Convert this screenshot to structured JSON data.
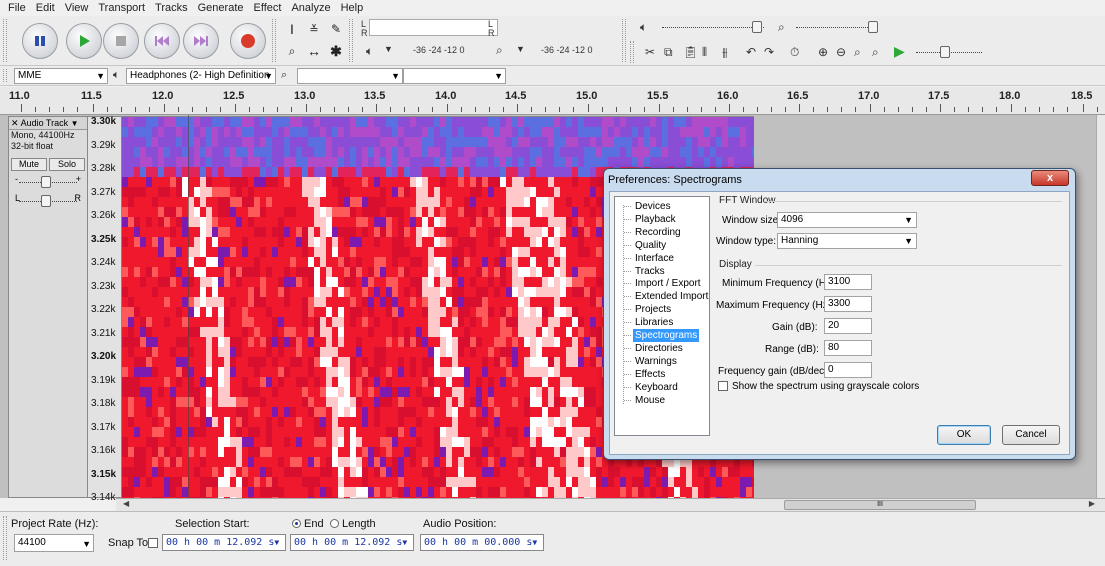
{
  "menu": [
    "File",
    "Edit",
    "View",
    "Transport",
    "Tracks",
    "Generate",
    "Effect",
    "Analyze",
    "Help"
  ],
  "meters": {
    "record_L": "L",
    "record_R": "R",
    "play_L": "L",
    "play_R": "R",
    "record_ticks": "-36  -24  -12   0",
    "play_ticks": "-36  -24  -12   0"
  },
  "device": {
    "host": "MME",
    "output": "Headphones (2- High Definition",
    "input": ""
  },
  "ruler": {
    "labels": [
      "11.0",
      "11.5",
      "12.0",
      "12.5",
      "13.0",
      "13.5",
      "14.0",
      "14.5",
      "15.0",
      "15.5",
      "16.0",
      "16.5",
      "17.0",
      "17.5",
      "18.0",
      "18.5"
    ]
  },
  "track": {
    "name": "Audio Track",
    "format": "Mono, 44100Hz",
    "bitdepth": "32-bit float",
    "mute": "Mute",
    "solo": "Solo",
    "gain_minus": "-",
    "gain_plus": "+",
    "pan_left": "L",
    "pan_right": "R"
  },
  "freq_labels": [
    "3.30k",
    "3.29k",
    "3.28k",
    "3.27k",
    "3.26k",
    "3.25k",
    "3.24k",
    "3.23k",
    "3.22k",
    "3.21k",
    "3.20k",
    "3.19k",
    "3.18k",
    "3.17k",
    "3.16k",
    "3.15k",
    "3.14k"
  ],
  "hscroll_grip": "III",
  "selection_bar": {
    "project_rate_label": "Project Rate (Hz):",
    "project_rate": "44100",
    "snap_to": "Snap To",
    "selection_start_label": "Selection Start:",
    "end_label": "End",
    "length_label": "Length",
    "audio_position_label": "Audio Position:",
    "start_time": "00 h 00 m 12.092 s",
    "end_time": "00 h 00 m 12.092 s",
    "audio_position": "00 h 00 m 00.000 s"
  },
  "dialog": {
    "title": "Preferences: Spectrograms",
    "close": "x",
    "tree": [
      "Devices",
      "Playback",
      "Recording",
      "Quality",
      "Interface",
      "Tracks",
      "Import / Export",
      "Extended Import",
      "Projects",
      "Libraries",
      "Spectrograms",
      "Directories",
      "Warnings",
      "Effects",
      "Keyboard",
      "Mouse"
    ],
    "selected": "Spectrograms",
    "fft_title": "FFT Window",
    "window_size_label": "Window size:",
    "window_size": "4096",
    "window_type_label": "Window type:",
    "window_type": "Hanning",
    "display_title": "Display",
    "min_freq_label": "Minimum Frequency (Hz):",
    "min_freq": "3100",
    "max_freq_label": "Maximum Frequency (Hz):",
    "max_freq": "3300",
    "gain_label": "Gain (dB):",
    "gain": "20",
    "range_label": "Range (dB):",
    "range": "80",
    "freq_gain_label": "Frequency gain (dB/dec):",
    "freq_gain": "0",
    "grayscale_label": "Show the spectrum using grayscale colors",
    "ok": "OK",
    "cancel": "Cancel"
  }
}
